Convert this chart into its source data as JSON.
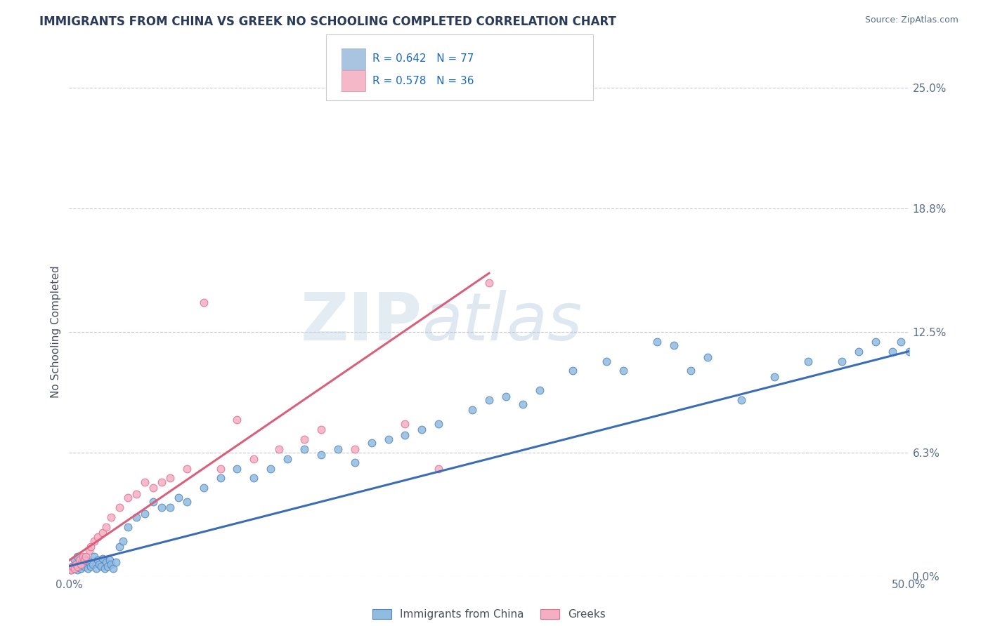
{
  "title": "IMMIGRANTS FROM CHINA VS GREEK NO SCHOOLING COMPLETED CORRELATION CHART",
  "source_text": "Source: ZipAtlas.com",
  "ylabel": "No Schooling Completed",
  "xlim": [
    0.0,
    50.0
  ],
  "ylim": [
    0.0,
    25.0
  ],
  "ytick_labels_right": [
    "25.0%",
    "18.8%",
    "12.5%",
    "6.3%",
    "0.0%"
  ],
  "ytick_positions_right": [
    25.0,
    18.8,
    12.5,
    6.3,
    0.0
  ],
  "legend_color1": "#a8c4e0",
  "legend_color2": "#f4b8c8",
  "watermark_zip": "ZIP",
  "watermark_atlas": "atlas",
  "blue_scatter_color": "#90bce0",
  "pink_scatter_color": "#f4afc5",
  "blue_line_color": "#3a6db5",
  "pink_line_color": "#d9607a",
  "blue_edge_color": "#5585c5",
  "pink_edge_color": "#e07090",
  "grid_color": "#c8c8d8",
  "bg_color": "#ffffff",
  "label_color": "#5b6e8c",
  "title_color": "#2a3a5a",
  "legend_text_color": "#1a6abf",
  "china_x": [
    0.1,
    0.2,
    0.3,
    0.3,
    0.4,
    0.5,
    0.5,
    0.6,
    0.7,
    0.7,
    0.8,
    0.9,
    0.9,
    1.0,
    1.1,
    1.2,
    1.3,
    1.4,
    1.5,
    1.6,
    1.7,
    1.8,
    1.9,
    2.0,
    2.1,
    2.2,
    2.3,
    2.4,
    2.5,
    2.6,
    2.8,
    3.0,
    3.2,
    3.5,
    4.0,
    4.5,
    5.0,
    5.5,
    6.0,
    6.5,
    7.0,
    8.0,
    9.0,
    10.0,
    11.0,
    12.0,
    13.0,
    14.0,
    15.0,
    16.0,
    17.0,
    18.0,
    19.0,
    20.0,
    21.0,
    22.0,
    24.0,
    25.0,
    26.0,
    27.0,
    28.0,
    30.0,
    32.0,
    33.0,
    35.0,
    36.0,
    37.0,
    38.0,
    40.0,
    42.0,
    44.0,
    46.0,
    47.0,
    48.0,
    49.0,
    49.5,
    50.0
  ],
  "china_y": [
    0.3,
    0.5,
    0.4,
    0.8,
    0.6,
    0.3,
    1.0,
    0.5,
    0.7,
    0.4,
    0.6,
    0.5,
    0.9,
    0.8,
    0.4,
    0.7,
    0.5,
    0.6,
    1.0,
    0.4,
    0.8,
    0.6,
    0.5,
    0.9,
    0.4,
    0.7,
    0.5,
    0.8,
    0.6,
    0.4,
    0.7,
    1.5,
    1.8,
    2.5,
    3.0,
    3.2,
    3.8,
    3.5,
    3.5,
    4.0,
    3.8,
    4.5,
    5.0,
    5.5,
    5.0,
    5.5,
    6.0,
    6.5,
    6.2,
    6.5,
    5.8,
    6.8,
    7.0,
    7.2,
    7.5,
    7.8,
    8.5,
    9.0,
    9.2,
    8.8,
    9.5,
    10.5,
    11.0,
    10.5,
    12.0,
    11.8,
    10.5,
    11.2,
    9.0,
    10.2,
    11.0,
    11.0,
    11.5,
    12.0,
    11.5,
    12.0,
    11.5
  ],
  "greek_x": [
    0.1,
    0.2,
    0.3,
    0.4,
    0.5,
    0.6,
    0.7,
    0.8,
    0.9,
    1.0,
    1.2,
    1.3,
    1.5,
    1.7,
    2.0,
    2.2,
    2.5,
    3.0,
    3.5,
    4.0,
    4.5,
    5.0,
    5.5,
    6.0,
    7.0,
    8.0,
    9.0,
    10.0,
    11.0,
    12.5,
    14.0,
    15.0,
    17.0,
    20.0,
    22.0,
    25.0
  ],
  "greek_y": [
    0.3,
    0.5,
    0.4,
    0.6,
    0.5,
    0.8,
    0.6,
    1.0,
    0.8,
    1.0,
    1.3,
    1.5,
    1.8,
    2.0,
    2.2,
    2.5,
    3.0,
    3.5,
    4.0,
    4.2,
    4.8,
    4.5,
    4.8,
    5.0,
    5.5,
    14.0,
    5.5,
    8.0,
    6.0,
    6.5,
    7.0,
    7.5,
    6.5,
    7.8,
    5.5,
    15.0
  ],
  "china_line_x": [
    0,
    50
  ],
  "china_line_y": [
    0.5,
    11.5
  ],
  "greek_line_x": [
    0,
    25
  ],
  "greek_line_y": [
    0.8,
    15.5
  ]
}
